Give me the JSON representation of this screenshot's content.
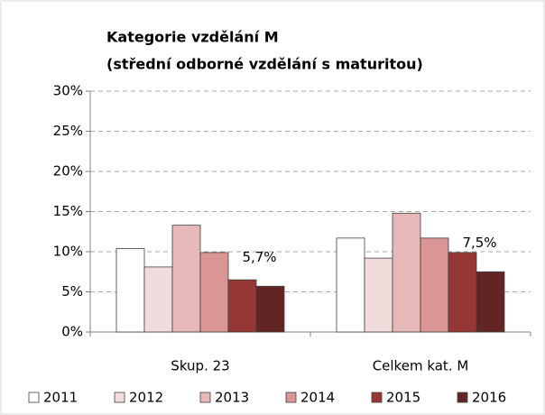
{
  "chart_data": {
    "type": "bar",
    "title": "Kategorie vzdělání  M",
    "subtitle": "(střední odborné vzdělání  s maturitou)",
    "categories": [
      "Skup. 23",
      "Celkem kat. M"
    ],
    "series": [
      {
        "name": "2011",
        "color": "#ffffff",
        "values": [
          10.4,
          11.7
        ]
      },
      {
        "name": "2012",
        "color": "#f2dcdb",
        "values": [
          8.1,
          9.2
        ]
      },
      {
        "name": "2013",
        "color": "#e6b9b8",
        "values": [
          13.3,
          14.8
        ]
      },
      {
        "name": "2014",
        "color": "#d99694",
        "values": [
          9.9,
          11.7
        ]
      },
      {
        "name": "2015",
        "color": "#953735",
        "values": [
          6.5,
          9.9
        ]
      },
      {
        "name": "2016",
        "color": "#632523",
        "values": [
          5.7,
          7.5
        ],
        "value_labels": [
          "5,7%",
          "7,5%"
        ]
      }
    ],
    "ylim": [
      0,
      30
    ],
    "yticks": [
      {
        "value": 0,
        "label": "0%"
      },
      {
        "value": 5,
        "label": "5%"
      },
      {
        "value": 10,
        "label": "10%"
      },
      {
        "value": 15,
        "label": "15%"
      },
      {
        "value": 20,
        "label": "20%"
      },
      {
        "value": 25,
        "label": "25%"
      },
      {
        "value": 30,
        "label": "30%"
      }
    ],
    "grid": true,
    "legend": "bottom"
  }
}
